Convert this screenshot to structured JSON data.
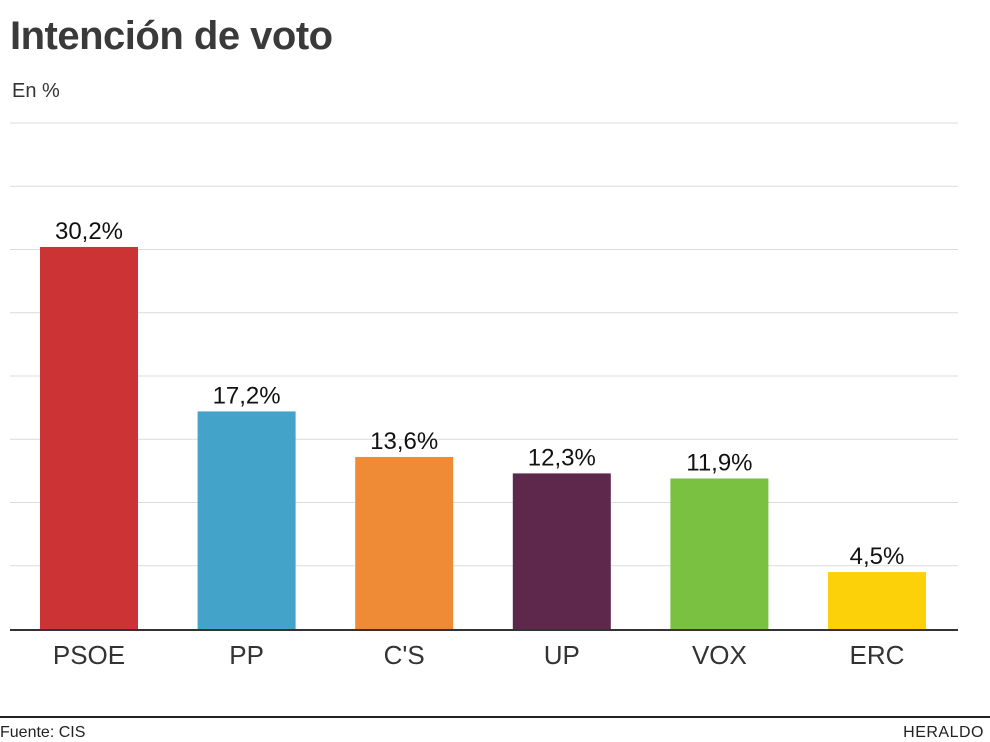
{
  "header": {
    "title": "Intención de voto",
    "subtitle": "En %"
  },
  "footer": {
    "source": "Fuente: CIS",
    "brand": "HERALDO"
  },
  "chart_data": {
    "type": "bar",
    "title": "Intención de voto",
    "subtitle": "En %",
    "xlabel": "",
    "ylabel": "",
    "ylim": [
      0,
      40
    ],
    "grid": true,
    "categories": [
      "PSOE",
      "PP",
      "C'S",
      "UP",
      "VOX",
      "ERC"
    ],
    "values": [
      30.2,
      17.2,
      13.6,
      12.3,
      11.9,
      4.5
    ],
    "data_labels": [
      "30,2%",
      "17,2%",
      "13,6%",
      "12,3%",
      "11,9%",
      "4,5%"
    ],
    "colors": [
      "#cb3335",
      "#43a3c8",
      "#ef8b36",
      "#5e274c",
      "#7ac142",
      "#fdd10a"
    ]
  }
}
